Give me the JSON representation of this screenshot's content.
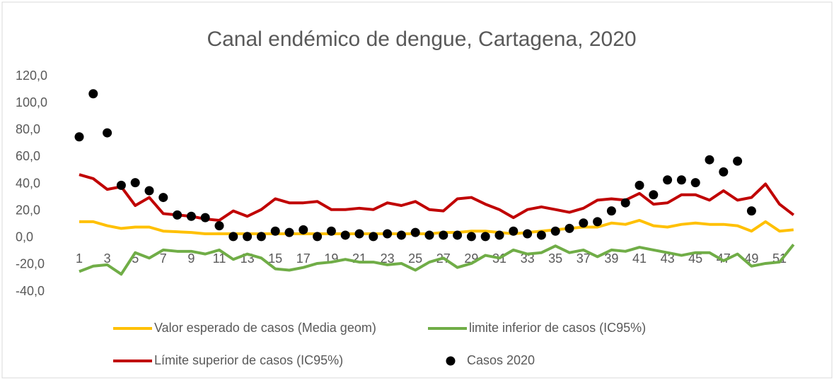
{
  "chart_data": {
    "type": "line",
    "title": "Canal endémico de dengue, Cartagena, 2020",
    "categories": [
      1,
      null,
      3,
      null,
      5,
      null,
      7,
      null,
      9,
      null,
      11,
      null,
      13,
      null,
      15,
      null,
      17,
      null,
      19,
      null,
      21,
      null,
      23,
      null,
      25,
      null,
      27,
      null,
      29,
      null,
      31,
      null,
      33,
      null,
      35,
      null,
      37,
      null,
      39,
      null,
      41,
      null,
      43,
      null,
      45,
      null,
      47,
      null,
      49,
      null,
      51,
      null
    ],
    "ylim": [
      -40,
      120
    ],
    "yticks": [
      {
        "value": -40,
        "label": "-40,0"
      },
      {
        "value": -20,
        "label": "-20,0"
      },
      {
        "value": 0,
        "label": "0,0"
      },
      {
        "value": 20,
        "label": "20,0"
      },
      {
        "value": 40,
        "label": "40,0"
      },
      {
        "value": 60,
        "label": "60,0"
      },
      {
        "value": 80,
        "label": "80,0"
      },
      {
        "value": 100,
        "label": "100,0"
      },
      {
        "value": 120,
        "label": "120,0"
      }
    ],
    "series": [
      {
        "name": "Valor esperado de casos (Media geom)",
        "color": "#ffc000",
        "values": [
          12,
          12,
          9,
          7,
          8,
          8,
          5,
          4.5,
          4,
          3,
          3,
          3,
          3,
          3,
          3,
          3,
          3,
          3,
          3,
          3,
          3,
          3,
          3,
          3,
          3,
          3,
          4,
          4,
          5,
          5,
          4,
          3,
          4,
          5,
          6,
          7,
          8,
          8,
          11,
          10,
          13,
          9,
          8,
          10,
          11,
          10,
          10,
          9,
          5,
          12,
          5,
          6
        ]
      },
      {
        "name": "limite inferior de casos (IC95%)",
        "color": "#70ad47",
        "values": [
          -25,
          -21,
          -20,
          -27,
          -11,
          -15,
          -9,
          -10,
          -10,
          -12,
          -9,
          -16,
          -12,
          -15,
          -23,
          -24,
          -22,
          -19,
          -18,
          -16,
          -18,
          -18,
          -20,
          -19,
          -24,
          -18,
          -15,
          -22,
          -19,
          -13,
          -15,
          -9,
          -12,
          -11,
          -6,
          -11,
          -9,
          -14,
          -9,
          -10,
          -7,
          -9,
          -11,
          -13,
          -11,
          -11,
          -17,
          -12,
          -21,
          -19,
          -18,
          -5
        ]
      },
      {
        "name": "Límite superior de casos (IC95%)",
        "color": "#c00000",
        "values": [
          47,
          44,
          36,
          38,
          24,
          30,
          18,
          17,
          16,
          14,
          13,
          20,
          16,
          21,
          29,
          26,
          26,
          27,
          21,
          21,
          22,
          21,
          26,
          24,
          27,
          21,
          20,
          29,
          30,
          25,
          21,
          15,
          21,
          23,
          21,
          19,
          22,
          28,
          29,
          28,
          33,
          25,
          26,
          32,
          32,
          28,
          35,
          28,
          30,
          40,
          25,
          17
        ]
      },
      {
        "name": "Casos 2020",
        "color": "#000000",
        "type": "scatter",
        "values": [
          75,
          107,
          78,
          39,
          41,
          35,
          30,
          17,
          16,
          15,
          9,
          1,
          1,
          1,
          5,
          4,
          6,
          1,
          5,
          2,
          3,
          1,
          3,
          2,
          4,
          2,
          2,
          2,
          1,
          1,
          2,
          5,
          3,
          2,
          5,
          7,
          11,
          12,
          20,
          26,
          39,
          32,
          43,
          43,
          41,
          58,
          49,
          57,
          20,
          null,
          null,
          null
        ]
      }
    ]
  }
}
